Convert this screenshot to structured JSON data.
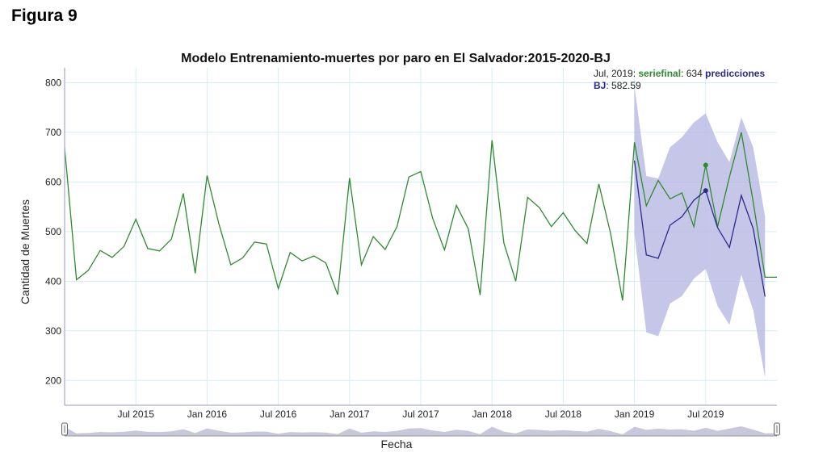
{
  "figure_label": "Figura 9",
  "chart_data": {
    "type": "line",
    "title": "Modelo Entrenamiento-muertes por paro en El Salvador:2015-2020-BJ",
    "xlabel": "Fecha",
    "ylabel": "Cantidad de Muertes",
    "ylim": [
      150,
      830
    ],
    "xlim": [
      "2015-01",
      "2020-01"
    ],
    "grid": true,
    "x_ticks": [
      "Jul 2015",
      "Jan 2016",
      "Jul 2016",
      "Jan 2017",
      "Jul 2017",
      "Jan 2018",
      "Jul 2018",
      "Jan 2019",
      "Jul 2019"
    ],
    "x_tick_months": [
      6,
      12,
      18,
      24,
      30,
      36,
      42,
      48,
      54
    ],
    "y_ticks": [
      200,
      300,
      400,
      500,
      600,
      700,
      800
    ],
    "series": [
      {
        "name": "seriefinal",
        "color": "#2e8b2e",
        "x": [
          "2015-01",
          "2015-02",
          "2015-03",
          "2015-04",
          "2015-05",
          "2015-06",
          "2015-07",
          "2015-08",
          "2015-09",
          "2015-10",
          "2015-11",
          "2015-12",
          "2016-01",
          "2016-02",
          "2016-03",
          "2016-04",
          "2016-05",
          "2016-06",
          "2016-07",
          "2016-08",
          "2016-09",
          "2016-10",
          "2016-11",
          "2016-12",
          "2017-01",
          "2017-02",
          "2017-03",
          "2017-04",
          "2017-05",
          "2017-06",
          "2017-07",
          "2017-08",
          "2017-09",
          "2017-10",
          "2017-11",
          "2017-12",
          "2018-01",
          "2018-02",
          "2018-03",
          "2018-04",
          "2018-05",
          "2018-06",
          "2018-07",
          "2018-08",
          "2018-09",
          "2018-10",
          "2018-11",
          "2018-12",
          "2019-01",
          "2019-02",
          "2019-03",
          "2019-04",
          "2019-05",
          "2019-06",
          "2019-07",
          "2019-08",
          "2019-09",
          "2019-10",
          "2019-11",
          "2019-12",
          "2020-01"
        ],
        "values": [
          670,
          403,
          422,
          462,
          448,
          470,
          525,
          466,
          461,
          485,
          577,
          416,
          613,
          515,
          433,
          447,
          479,
          475,
          385,
          458,
          441,
          451,
          437,
          373,
          608,
          433,
          490,
          464,
          510,
          610,
          621,
          527,
          463,
          553,
          506,
          372,
          684,
          477,
          400,
          569,
          548,
          510,
          538,
          502,
          476,
          596,
          495,
          361,
          680,
          552,
          603,
          566,
          578,
          510,
          634,
          510,
          610,
          700,
          560,
          408,
          408
        ]
      },
      {
        "name": "predicciones BJ",
        "color": "#2a2a8c",
        "x": [
          "2019-01",
          "2019-02",
          "2019-03",
          "2019-04",
          "2019-05",
          "2019-06",
          "2019-07",
          "2019-08",
          "2019-09",
          "2019-10",
          "2019-11",
          "2019-12"
        ],
        "values": [
          643,
          453,
          446,
          513,
          530,
          563,
          582.59,
          508,
          468,
          573,
          506,
          369
        ]
      }
    ],
    "confidence_band": {
      "color": "#b8b8e3",
      "x": [
        "2019-01",
        "2019-02",
        "2019-03",
        "2019-04",
        "2019-05",
        "2019-06",
        "2019-07",
        "2019-08",
        "2019-09",
        "2019-10",
        "2019-11",
        "2019-12"
      ],
      "upper": [
        793,
        612,
        607,
        670,
        690,
        720,
        738,
        680,
        640,
        730,
        670,
        530
      ],
      "lower": [
        495,
        297,
        289,
        355,
        370,
        405,
        425,
        350,
        312,
        413,
        342,
        205
      ]
    },
    "hover": {
      "date": "Jul, 2019",
      "series_name": "seriefinal",
      "series_value": "634",
      "pred_name_part1": "predicciones",
      "pred_name_part2": "BJ",
      "pred_value": "582.59",
      "x": "2019-07",
      "y_series": 634,
      "y_pred": 582.59
    },
    "range_selector": {
      "fill": "#c8c8dc",
      "values": [
        670,
        403,
        422,
        462,
        448,
        470,
        525,
        466,
        461,
        485,
        577,
        416,
        613,
        515,
        433,
        447,
        479,
        475,
        385,
        458,
        441,
        451,
        437,
        373,
        608,
        433,
        490,
        464,
        510,
        610,
        621,
        527,
        463,
        553,
        506,
        372,
        684,
        477,
        400,
        569,
        548,
        510,
        538,
        502,
        476,
        596,
        495,
        361,
        680,
        552,
        603,
        566,
        578,
        510,
        634,
        510,
        610,
        700,
        560,
        408,
        408
      ]
    }
  }
}
